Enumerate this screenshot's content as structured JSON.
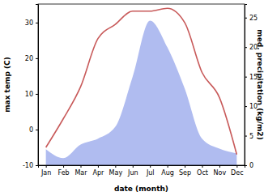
{
  "chart_data": {
    "type": "line",
    "x_label": "date (month)",
    "y_label": "max temp (C)",
    "y2_label": "med. precipitation (kg/m2)",
    "categories": [
      "Jan",
      "Feb",
      "Mar",
      "Apr",
      "May",
      "Jun",
      "Jul",
      "Aug",
      "Sep",
      "Oct",
      "Nov",
      "Dec"
    ],
    "ylim": [
      -10,
      35.2
    ],
    "yticks": [
      -10,
      0,
      10,
      20,
      30
    ],
    "y2lim": [
      0,
      27.3
    ],
    "y2ticks": [
      0,
      5,
      10,
      15,
      20,
      25
    ],
    "series": [
      {
        "name": "max temp (C)",
        "type": "line",
        "color": "#c85a5a",
        "values": [
          -5,
          3,
          12,
          25.5,
          29.5,
          33.2,
          33.2,
          34,
          30,
          16,
          9,
          -7
        ]
      },
      {
        "name": "med. precipitation (kg/m2)",
        "type": "area",
        "axis": "y2",
        "color": "#b0bcf0",
        "values": [
          2.7,
          1.2,
          3.5,
          4.5,
          6.5,
          15,
          24.5,
          20,
          13,
          4.5,
          2.8,
          2
        ]
      }
    ]
  }
}
